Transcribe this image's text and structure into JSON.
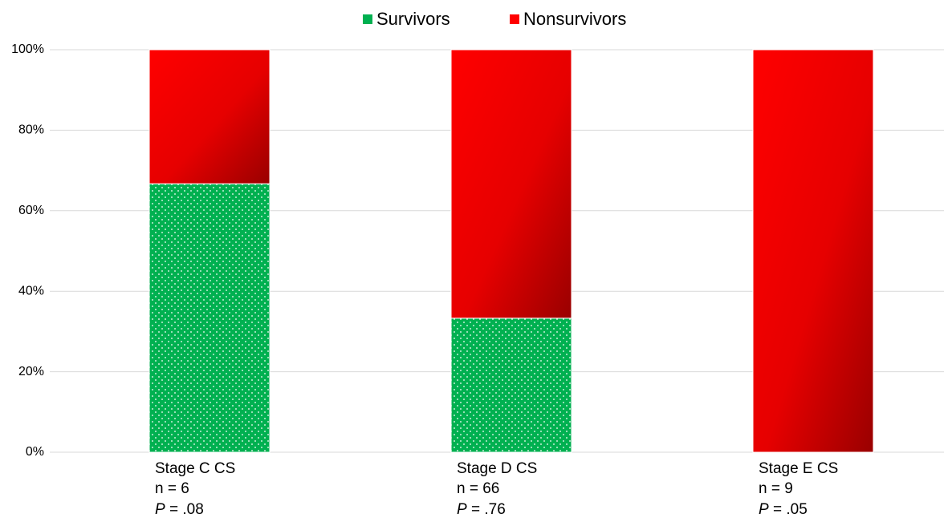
{
  "chart_data": {
    "type": "stacked_bar",
    "categories": [
      "Stage C CS",
      "Stage D CS",
      "Stage E CS"
    ],
    "sample_sizes": [
      "n = 6",
      "n = 66",
      "n = 9"
    ],
    "p_symbol": "P",
    "p_values": [
      "= .08",
      "= .76",
      "= .05"
    ],
    "series": [
      {
        "name": "Survivors",
        "color": "#00b050",
        "values": [
          66.7,
          33.3,
          0
        ]
      },
      {
        "name": "Nonsurvivors",
        "color": "#ff0000",
        "values": [
          33.3,
          66.7,
          100
        ]
      }
    ],
    "ylim": [
      0,
      100
    ],
    "yticks": [
      {
        "value": 0,
        "label": "0%"
      },
      {
        "value": 20,
        "label": "20%"
      },
      {
        "value": 40,
        "label": "40%"
      },
      {
        "value": 60,
        "label": "60%"
      },
      {
        "value": 80,
        "label": "80%"
      },
      {
        "value": 100,
        "label": "100%"
      }
    ],
    "grid": true,
    "legend": "top"
  }
}
